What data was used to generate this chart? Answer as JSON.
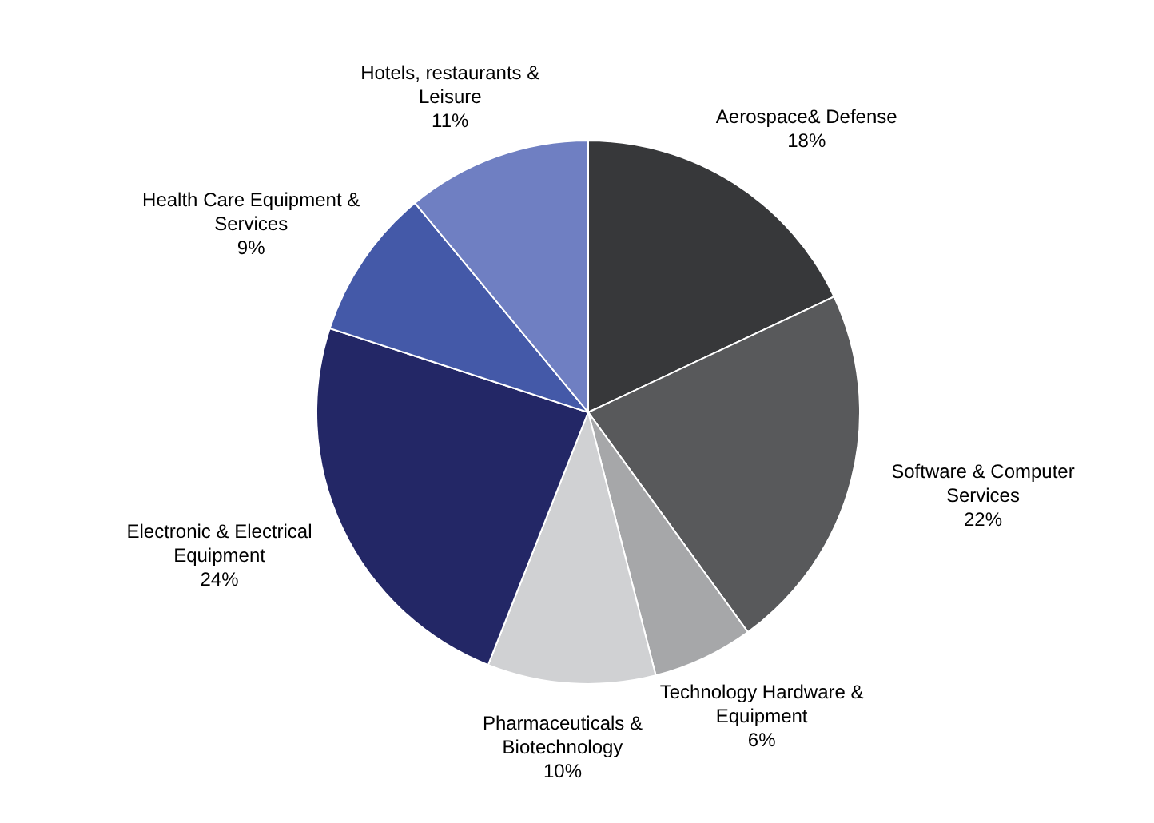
{
  "chart_data": {
    "type": "pie",
    "categories": [
      "Aerospace& Defense",
      "Software & Computer Services",
      "Technology Hardware & Equipment",
      "Pharmaceuticals & Biotechnology",
      "Electronic & Electrical Equipment",
      "Health Care Equipment & Services",
      "Hotels, restaurants & Leisure"
    ],
    "values": [
      18,
      22,
      6,
      10,
      24,
      9,
      11
    ],
    "value_labels": [
      "18%",
      "22%",
      "6%",
      "10%",
      "24%",
      "9%",
      "11%"
    ],
    "colors": [
      "#37383a",
      "#58595b",
      "#a6a7a9",
      "#d0d1d3",
      "#232766",
      "#4459a8",
      "#6f7fc2"
    ]
  }
}
